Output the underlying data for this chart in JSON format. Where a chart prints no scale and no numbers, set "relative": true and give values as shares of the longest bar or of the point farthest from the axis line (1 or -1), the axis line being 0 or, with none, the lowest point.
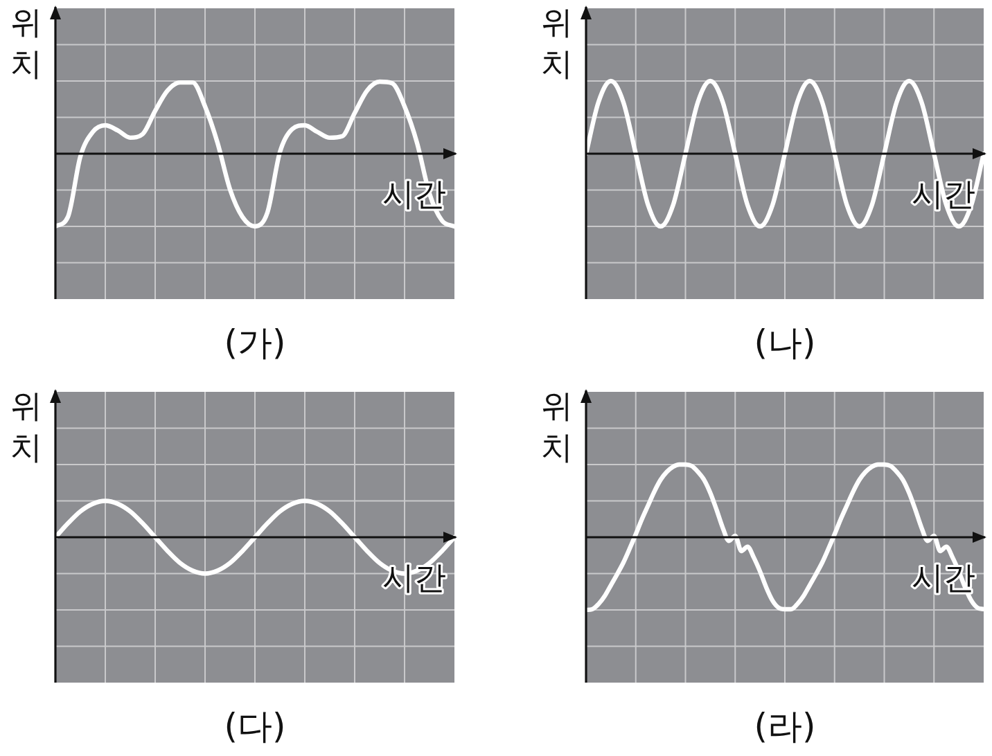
{
  "chart_data": [
    {
      "type": "line",
      "title": "(가)",
      "xlabel": "시간",
      "ylabel": "위치",
      "relative": true,
      "grid": true,
      "categories": [
        null,
        null,
        null,
        null,
        null,
        null,
        null,
        null,
        null,
        null,
        null,
        null,
        null,
        null,
        null,
        null,
        null,
        null,
        null,
        null,
        null,
        null,
        null,
        null,
        null,
        null,
        null,
        null,
        null,
        null,
        null,
        null,
        null
      ],
      "series": [
        {
          "color": "#ffffff",
          "values": [
            -1,
            -0.87,
            -0.04,
            0.3,
            0.39,
            0.32,
            0.22,
            0.27,
            0.59,
            0.87,
            0.98,
            0.98,
            0.65,
            0.15,
            -0.49,
            -0.87,
            -1,
            -0.81,
            0.02,
            0.34,
            0.39,
            0.3,
            0.22,
            0.24,
            0.56,
            0.87,
            0.99,
            0.97,
            0.65,
            0.15,
            -0.55,
            -0.92,
            -1
          ]
        }
      ]
    },
    {
      "type": "line",
      "title": "(나)",
      "xlabel": "시간",
      "ylabel": "위치",
      "relative": true,
      "grid": true,
      "categories": [
        null,
        null,
        null,
        null,
        null,
        null,
        null,
        null,
        null,
        null,
        null,
        null,
        null,
        null,
        null,
        null,
        null,
        null,
        null,
        null,
        null,
        null,
        null,
        null,
        null,
        null,
        null,
        null,
        null,
        null,
        null,
        null,
        null
      ],
      "series": [
        {
          "color": "#ffffff",
          "values": [
            0,
            0.71,
            1,
            0.71,
            0,
            -0.71,
            -1,
            -0.71,
            0,
            0.71,
            1,
            0.71,
            0,
            -0.71,
            -1,
            -0.71,
            0,
            0.71,
            1,
            0.71,
            0,
            -0.71,
            -1,
            -0.71,
            0,
            0.71,
            1,
            0.71,
            0,
            -0.71,
            -1,
            -0.71,
            0
          ]
        }
      ]
    },
    {
      "type": "line",
      "title": "(다)",
      "xlabel": "시간",
      "ylabel": "위치",
      "relative": true,
      "grid": true,
      "categories": [
        null,
        null,
        null,
        null,
        null,
        null,
        null,
        null,
        null,
        null,
        null,
        null,
        null,
        null,
        null,
        null,
        null,
        null,
        null,
        null,
        null,
        null,
        null,
        null,
        null,
        null,
        null,
        null,
        null,
        null,
        null,
        null,
        null
      ],
      "series": [
        {
          "color": "#ffffff",
          "values": [
            0,
            0.38,
            0.71,
            0.92,
            1,
            0.92,
            0.71,
            0.38,
            0,
            -0.38,
            -0.71,
            -0.92,
            -1,
            -0.92,
            -0.71,
            -0.38,
            0,
            0.38,
            0.71,
            0.92,
            1,
            0.92,
            0.71,
            0.38,
            0,
            -0.38,
            -0.71,
            -0.92,
            -1,
            -0.92,
            -0.71,
            -0.38,
            0
          ]
        }
      ]
    },
    {
      "type": "line",
      "title": "(라)",
      "xlabel": "시간",
      "ylabel": "위치",
      "relative": true,
      "grid": true,
      "categories": [
        null,
        null,
        null,
        null,
        null,
        null,
        null,
        null,
        null,
        null,
        null,
        null,
        null,
        null,
        null,
        null,
        null,
        null,
        null,
        null,
        null,
        null,
        null,
        null,
        null,
        null,
        null,
        null,
        null,
        null,
        null,
        null,
        null,
        null,
        null,
        null,
        null,
        null,
        null,
        null,
        null,
        null,
        null,
        null,
        null,
        null,
        null,
        null,
        null,
        null,
        null,
        null,
        null,
        null,
        null,
        null,
        null,
        null,
        null,
        null,
        null,
        null,
        null,
        null,
        null
      ],
      "series": [
        {
          "color": "#ffffff",
          "values": [
            -1,
            -0.99,
            -0.92,
            -0.81,
            -0.66,
            -0.51,
            -0.35,
            -0.16,
            0.04,
            0.25,
            0.44,
            0.63,
            0.79,
            0.9,
            0.97,
            1,
            1,
            0.98,
            0.9,
            0.79,
            0.61,
            0.38,
            0.13,
            -0.05,
            0.02,
            -0.19,
            -0.13,
            -0.28,
            -0.47,
            -0.69,
            -0.87,
            -0.97,
            -0.99,
            -0.99,
            -0.92,
            -0.81,
            -0.66,
            -0.51,
            -0.35,
            -0.16,
            0.04,
            0.25,
            0.44,
            0.63,
            0.79,
            0.9,
            0.97,
            1,
            1,
            0.98,
            0.9,
            0.79,
            0.61,
            0.38,
            0.13,
            -0.05,
            0.02,
            -0.19,
            -0.13,
            -0.28,
            -0.47,
            -0.69,
            -0.87,
            -0.97,
            -0.99
          ]
        }
      ]
    }
  ]
}
